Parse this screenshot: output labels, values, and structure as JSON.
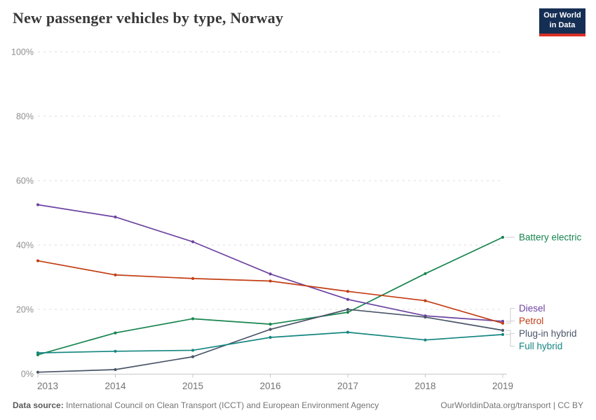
{
  "header": {
    "title": "New passenger vehicles by type, Norway"
  },
  "logo": {
    "line1": "Our World",
    "line2": "in Data",
    "bg_color": "#152e54",
    "bar_color": "#dc2f25"
  },
  "footer": {
    "source_label": "Data source:",
    "source_text": " International Council on Clean Transport (ICCT) and European Environment Agency",
    "right_text": "OurWorldinData.org/transport | CC BY"
  },
  "chart_data": {
    "type": "line",
    "title": "New passenger vehicles by type, Norway",
    "x": [
      2013,
      2014,
      2015,
      2016,
      2017,
      2018,
      2019
    ],
    "xlabel": "",
    "ylabel": "",
    "ylim": [
      0,
      100
    ],
    "yticks": [
      0,
      20,
      40,
      60,
      80,
      100
    ],
    "ytick_suffix": "%",
    "grid": "horizontal-dashed",
    "legend_position": "right-of-line-ends",
    "series": [
      {
        "name": "Battery electric",
        "color": "#18854f",
        "values": [
          5.9,
          12.7,
          17.1,
          15.4,
          19.1,
          31.1,
          42.4
        ]
      },
      {
        "name": "Diesel",
        "color": "#6d43a0",
        "values": [
          52.5,
          48.7,
          41.0,
          31.0,
          23.1,
          18.0,
          16.3
        ]
      },
      {
        "name": "Petrol",
        "color": "#c23e14",
        "values": [
          35.1,
          30.7,
          29.6,
          28.8,
          25.6,
          22.7,
          15.7
        ]
      },
      {
        "name": "Plug-in hybrid",
        "color": "#4a5568",
        "values": [
          0.5,
          1.3,
          5.3,
          13.8,
          20.0,
          17.6,
          13.5
        ]
      },
      {
        "name": "Full hybrid",
        "color": "#148680",
        "values": [
          6.5,
          7.0,
          7.3,
          11.3,
          12.9,
          10.5,
          12.2
        ]
      }
    ]
  }
}
